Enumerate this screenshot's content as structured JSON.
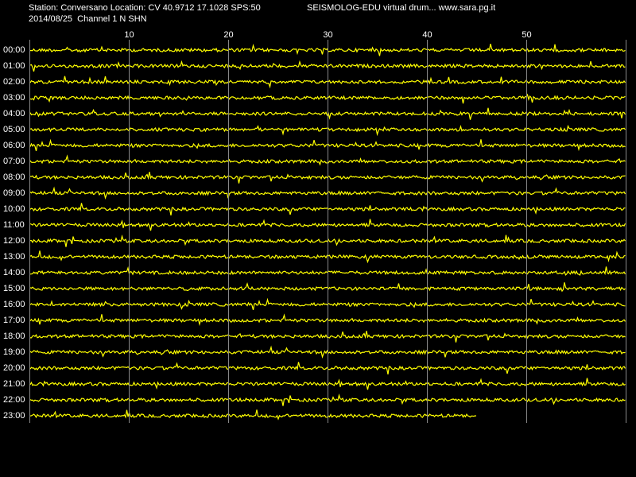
{
  "header": {
    "station": "Station: Conversano Location: CV 40.9712 17.1028 SPS:50",
    "source": "SEISMOLOG-EDU virtual drum... www.sara.pg.it",
    "channel": "2014/08/25  Channel 1 N SHN"
  },
  "minute_ticks": [
    10,
    20,
    30,
    40,
    50
  ],
  "rows": [
    "00:00",
    "01:00",
    "02:00",
    "03:00",
    "04:00",
    "05:00",
    "06:00",
    "07:00",
    "08:00",
    "09:00",
    "10:00",
    "11:00",
    "12:00",
    "13:00",
    "14:00",
    "15:00",
    "16:00",
    "17:00",
    "18:00",
    "19:00",
    "20:00",
    "21:00",
    "22:00",
    "23:00"
  ]
}
